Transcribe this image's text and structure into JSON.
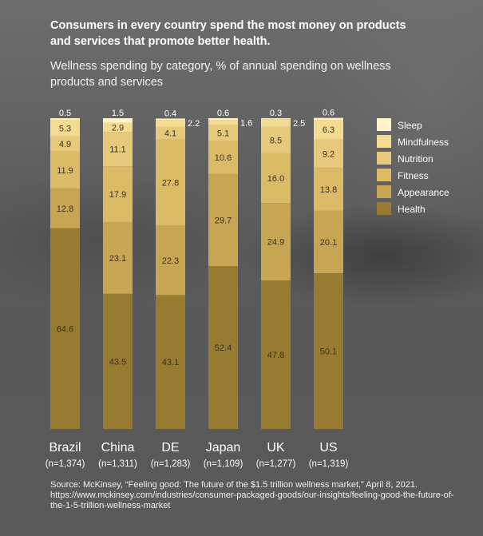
{
  "title": "Consumers in every country spend the most money on products and services that promote better health.",
  "subtitle": "Wellness spending by category, % of annual spending on wellness products and services",
  "source": "Source: McKinsey, “Feeling good: The future of the $1.5 trillion wellness market,” April 8, 2021.",
  "source_url": "https://www.mckinsey.com/industries/consumer-packaged-goods/our-insights/feeling-good-the-future-of-the-1-5-trillion-wellness-market",
  "colors": {
    "Health": "#967b31",
    "Appearance": "#c8a553",
    "Fitness": "#dbbb66",
    "Nutrition": "#e6c97a",
    "Mindfulness": "#f3dc92",
    "Sleep": "#fff4cc"
  },
  "chart_data": {
    "type": "bar",
    "stacked": true,
    "categories": [
      "Brazil",
      "China",
      "DE",
      "Japan",
      "UK",
      "US"
    ],
    "sample_sizes": [
      "(n=1,374)",
      "(n=1,311)",
      "(n=1,283)",
      "(n=1,109)",
      "(n=1,277)",
      "(n=1,319)"
    ],
    "ylim": [
      0,
      100
    ],
    "legend_position": "right",
    "series": [
      {
        "name": "Health",
        "values": [
          64.6,
          43.5,
          43.1,
          52.4,
          47.8,
          50.1
        ]
      },
      {
        "name": "Appearance",
        "values": [
          12.8,
          23.1,
          22.3,
          29.7,
          24.9,
          20.1
        ]
      },
      {
        "name": "Fitness",
        "values": [
          11.9,
          17.9,
          27.8,
          10.6,
          16.0,
          13.8
        ]
      },
      {
        "name": "Nutrition",
        "values": [
          4.9,
          11.1,
          4.1,
          5.1,
          8.5,
          9.2
        ]
      },
      {
        "name": "Mindfulness",
        "values": [
          5.3,
          2.9,
          2.2,
          1.6,
          2.5,
          6.3
        ]
      },
      {
        "name": "Sleep",
        "values": [
          0.5,
          1.5,
          0.4,
          0.6,
          0.3,
          0.6
        ]
      }
    ],
    "value_labels": [
      [
        "64.6",
        "43.5",
        "43.1",
        "52.4",
        "47.8",
        "50.1"
      ],
      [
        "12.8",
        "23.1",
        "22.3",
        "29.7",
        "24.9",
        "20.1"
      ],
      [
        "11.9",
        "17.9",
        "27.8",
        "10.6",
        "16.0",
        "13.8"
      ],
      [
        "4.9",
        "11.1",
        "4.1",
        "5.1",
        "8.5",
        "9.2"
      ],
      [
        "5.3",
        "2.9",
        "2.2",
        "1.6",
        "2.5",
        "6.3"
      ],
      [
        "0.5",
        "1.5",
        "0.4",
        "0.6",
        "0.3",
        "0.6"
      ]
    ],
    "legend_order": [
      "Sleep",
      "Mindfulness",
      "Nutrition",
      "Fitness",
      "Appearance",
      "Health"
    ]
  }
}
